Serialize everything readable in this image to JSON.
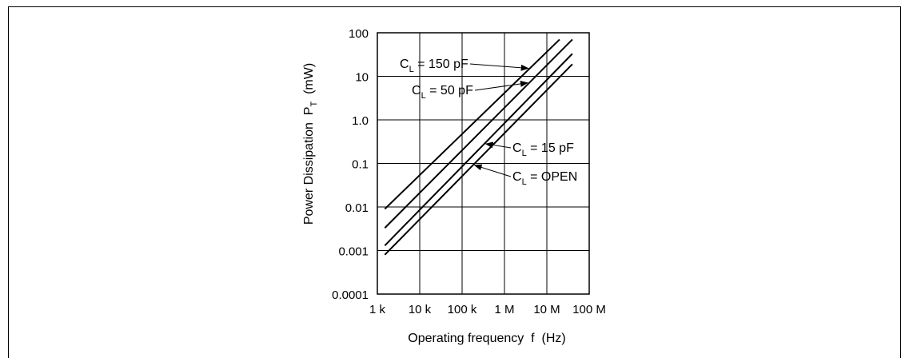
{
  "chart_data": {
    "type": "line",
    "x_scale": "log",
    "y_scale": "log",
    "xlim": [
      1000,
      100000000
    ],
    "ylim": [
      0.0001,
      100
    ],
    "grid": true,
    "xlabel": "Operating frequency  f  (Hz)",
    "ylabel": {
      "prefix": "Power Dissipation  P",
      "sub": "T",
      "suffix": "  (mW)"
    },
    "x_ticks": [
      {
        "value": 1000,
        "label": "1 k"
      },
      {
        "value": 10000,
        "label": "10 k"
      },
      {
        "value": 100000,
        "label": "100 k"
      },
      {
        "value": 1000000,
        "label": "1 M"
      },
      {
        "value": 10000000,
        "label": "10 M"
      },
      {
        "value": 100000000,
        "label": "100 M"
      }
    ],
    "y_ticks": [
      {
        "value": 0.0001,
        "label": "0.0001"
      },
      {
        "value": 0.001,
        "label": "0.001"
      },
      {
        "value": 0.01,
        "label": "0.01"
      },
      {
        "value": 0.1,
        "label": "0.1"
      },
      {
        "value": 1,
        "label": "1.0"
      },
      {
        "value": 10,
        "label": "10"
      },
      {
        "value": 100,
        "label": "100"
      }
    ],
    "series": [
      {
        "name": "C_L = 150 pF",
        "label": {
          "pre": "C",
          "sub": "L",
          "post": " = 150 pF"
        },
        "x": [
          1500,
          20000000
        ],
        "y": [
          0.009,
          70
        ]
      },
      {
        "name": "C_L = 50 pF",
        "label": {
          "pre": "C",
          "sub": "L",
          "post": " = 50 pF"
        },
        "x": [
          1500,
          40000000
        ],
        "y": [
          0.0033,
          70
        ]
      },
      {
        "name": "C_L = 15 pF",
        "label": {
          "pre": "C",
          "sub": "L",
          "post": " = 15 pF"
        },
        "x": [
          1500,
          40000000
        ],
        "y": [
          0.0013,
          33
        ]
      },
      {
        "name": "C_L = OPEN",
        "label": {
          "pre": "C",
          "sub": "L",
          "post": " = OPEN"
        },
        "x": [
          1500,
          40000000
        ],
        "y": [
          0.0008,
          19
        ]
      }
    ]
  }
}
